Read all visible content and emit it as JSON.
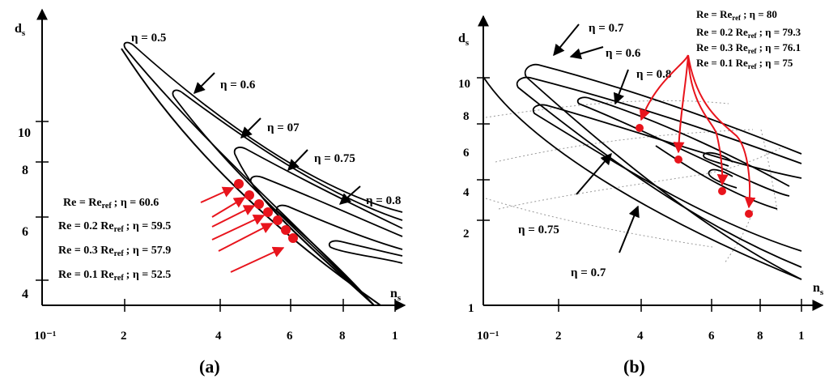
{
  "chart_data": [
    {
      "type": "contour",
      "panel_label": "(a)",
      "xlabel": "n",
      "xlabel_sub": "s",
      "ylabel": "d",
      "ylabel_sub": "s",
      "x_ticks": [
        "10⁻¹",
        "2",
        "4",
        "6",
        "8",
        "1"
      ],
      "y_ticks": [
        "4",
        "6",
        "8",
        "10"
      ],
      "contour_labels": [
        "η = 0.5",
        "η = 0.6",
        "η = 07",
        "η = 0.75",
        "η = 0.8"
      ],
      "points": [
        {
          "re": "Re = Re",
          "re_sub": "ref",
          "eta": "; η = 60.6"
        },
        {
          "re": "Re = 0.2 Re",
          "re_sub": "ref",
          "eta": "; η = 59.5"
        },
        {
          "re": "Re = 0.3 Re",
          "re_sub": "ref",
          "eta": "; η = 57.9"
        },
        {
          "re": "Re = 0.1 Re",
          "re_sub": "ref",
          "eta": "; η = 52.5"
        }
      ],
      "point_color": "#e8141c",
      "line_color": "#000000"
    },
    {
      "type": "contour",
      "panel_label": "(b)",
      "xlabel": "n",
      "xlabel_sub": "s",
      "ylabel": "d",
      "ylabel_sub": "s",
      "x_ticks": [
        "10⁻¹",
        "2",
        "4",
        "6",
        "8",
        "1"
      ],
      "y_ticks": [
        "1",
        "2",
        "4",
        "6",
        "8",
        "10"
      ],
      "contour_labels": [
        "η = 0.7",
        "η = 0.6",
        "η = 0.8",
        "η = 0.75",
        "η = 0.7"
      ],
      "points": [
        {
          "re": "Re = Re",
          "re_sub": "ref",
          "eta": "; η = 80"
        },
        {
          "re": "Re = 0.2 Re",
          "re_sub": "ref",
          "eta": "; η = 79.3"
        },
        {
          "re": "Re = 0.3 Re",
          "re_sub": "ref",
          "eta": "; η = 76.1"
        },
        {
          "re": "Re = 0.1 Re",
          "re_sub": "ref",
          "eta": "; η = 75"
        }
      ],
      "point_color": "#e8141c",
      "line_color": "#000000"
    }
  ]
}
